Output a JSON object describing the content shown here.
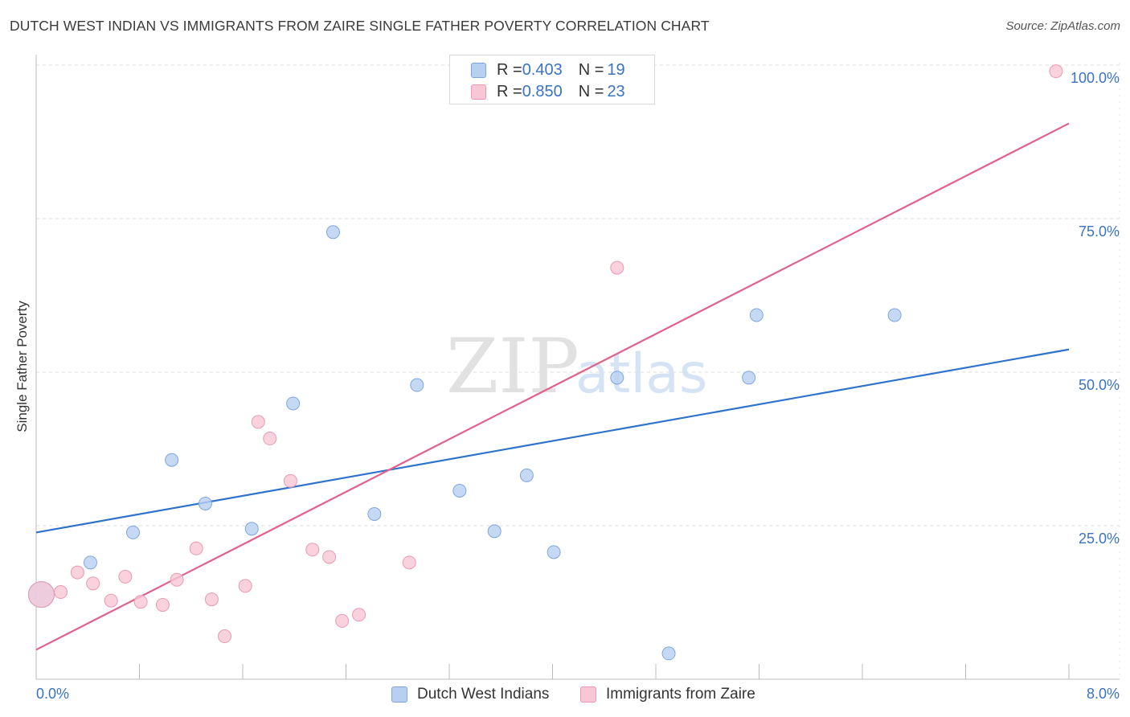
{
  "title": "DUTCH WEST INDIAN VS IMMIGRANTS FROM ZAIRE SINGLE FATHER POVERTY CORRELATION CHART",
  "source": "Source: ZipAtlas.com",
  "watermark": {
    "zip": "ZIP",
    "atlas": "atlas"
  },
  "legend_top": [
    {
      "r_label": "R = ",
      "r_value": "0.403",
      "n_label": "N = ",
      "n_value": "19"
    },
    {
      "r_label": "R = ",
      "r_value": "0.850",
      "n_label": "N = ",
      "n_value": "23"
    }
  ],
  "colors": {
    "blue_fill": "#b7d0f2",
    "blue_stroke": "#7ea6dc",
    "blue_line": "#2f72cc",
    "pink_fill": "#f8c7d5",
    "pink_stroke": "#e99ab2",
    "pink_line": "#e0628a",
    "axis_label": "#3b73c4",
    "grid": "#dddddd"
  },
  "chart_data": {
    "type": "scatter",
    "title": "DUTCH WEST INDIAN VS IMMIGRANTS FROM ZAIRE SINGLE FATHER POVERTY CORRELATION CHART",
    "xlabel": "",
    "ylabel": "Single Father Poverty",
    "xlim": [
      0,
      8
    ],
    "ylim": [
      0,
      100
    ],
    "x_tick_labels": [
      "0.0%",
      "8.0%"
    ],
    "y_tick_labels": [
      "25.0%",
      "50.0%",
      "75.0%",
      "100.0%"
    ],
    "y_ticks": [
      25,
      50,
      75,
      100
    ],
    "x_minor_ticks": [
      0,
      0.8,
      1.6,
      2.4,
      3.2,
      4.0,
      4.8,
      5.6,
      6.4,
      7.2,
      8.0
    ],
    "series": [
      {
        "name": "Dutch West Indians",
        "color": "blue",
        "trend": {
          "x0": 0,
          "y0": 23.9,
          "x1": 8,
          "y1": 53.7
        },
        "points": [
          {
            "x": 0.04,
            "y": 13.8,
            "big": true
          },
          {
            "x": 0.42,
            "y": 19.0
          },
          {
            "x": 0.75,
            "y": 23.9
          },
          {
            "x": 1.05,
            "y": 35.7
          },
          {
            "x": 1.31,
            "y": 28.6
          },
          {
            "x": 1.67,
            "y": 24.5
          },
          {
            "x": 1.99,
            "y": 44.9
          },
          {
            "x": 2.3,
            "y": 72.8
          },
          {
            "x": 2.62,
            "y": 26.9
          },
          {
            "x": 2.95,
            "y": 47.9
          },
          {
            "x": 3.28,
            "y": 30.7
          },
          {
            "x": 3.55,
            "y": 24.1
          },
          {
            "x": 3.8,
            "y": 33.2
          },
          {
            "x": 4.01,
            "y": 20.7
          },
          {
            "x": 4.5,
            "y": 49.1
          },
          {
            "x": 4.9,
            "y": 4.2
          },
          {
            "x": 5.52,
            "y": 49.1
          },
          {
            "x": 5.58,
            "y": 59.3
          },
          {
            "x": 6.65,
            "y": 59.3
          }
        ]
      },
      {
        "name": "Immigrants from Zaire",
        "color": "pink",
        "trend": {
          "x0": 0,
          "y0": 4.8,
          "x1": 8,
          "y1": 90.5
        },
        "points": [
          {
            "x": 0.04,
            "y": 13.8,
            "big": true
          },
          {
            "x": 0.19,
            "y": 14.2
          },
          {
            "x": 0.32,
            "y": 17.4
          },
          {
            "x": 0.44,
            "y": 15.6
          },
          {
            "x": 0.58,
            "y": 12.8
          },
          {
            "x": 0.69,
            "y": 16.7
          },
          {
            "x": 0.81,
            "y": 12.6
          },
          {
            "x": 0.98,
            "y": 12.1
          },
          {
            "x": 1.09,
            "y": 16.2
          },
          {
            "x": 1.24,
            "y": 21.3
          },
          {
            "x": 1.36,
            "y": 13.0
          },
          {
            "x": 1.46,
            "y": 7.0
          },
          {
            "x": 1.62,
            "y": 15.2
          },
          {
            "x": 1.72,
            "y": 41.9
          },
          {
            "x": 1.81,
            "y": 39.2
          },
          {
            "x": 1.97,
            "y": 32.3
          },
          {
            "x": 2.14,
            "y": 21.1
          },
          {
            "x": 2.27,
            "y": 19.9
          },
          {
            "x": 2.37,
            "y": 9.5
          },
          {
            "x": 2.5,
            "y": 10.5
          },
          {
            "x": 2.89,
            "y": 19.0
          },
          {
            "x": 4.5,
            "y": 67.0
          },
          {
            "x": 7.9,
            "y": 99.0
          }
        ]
      }
    ]
  }
}
